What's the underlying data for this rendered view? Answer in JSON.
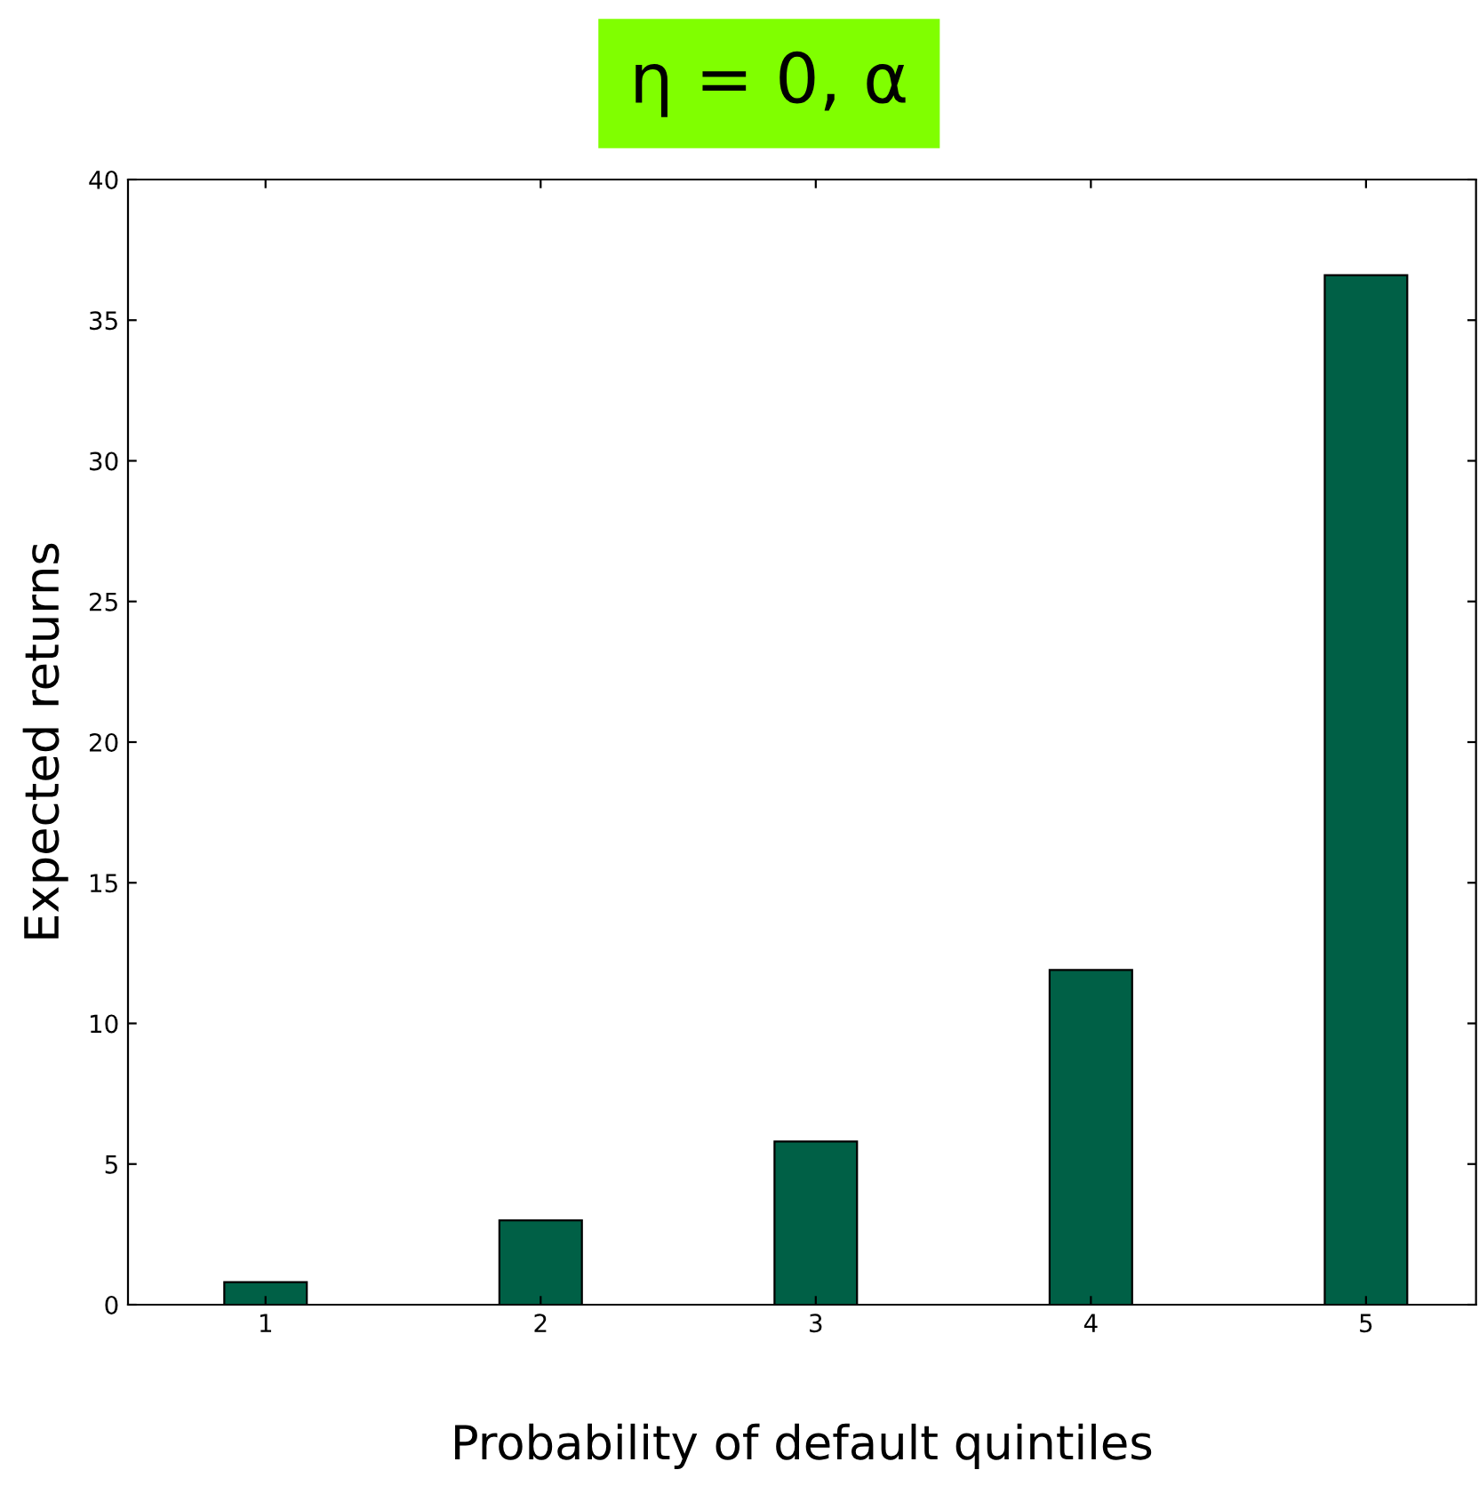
{
  "chart_data": {
    "type": "bar",
    "title": "η = 0, α",
    "xlabel": "Probability of default quintiles",
    "ylabel": "Expected returns",
    "x": [
      1,
      2,
      3,
      4,
      5
    ],
    "values": [
      0.8,
      3.0,
      5.8,
      11.9,
      36.6
    ],
    "color": "#006046",
    "xlim": [
      0.5,
      5.4
    ],
    "xticks": [
      1,
      2,
      3,
      4,
      5
    ],
    "ylim": [
      0,
      40
    ],
    "yticks": [
      0,
      5,
      10,
      15,
      20,
      25,
      30,
      35,
      40
    ],
    "grid": false,
    "legend": false
  }
}
